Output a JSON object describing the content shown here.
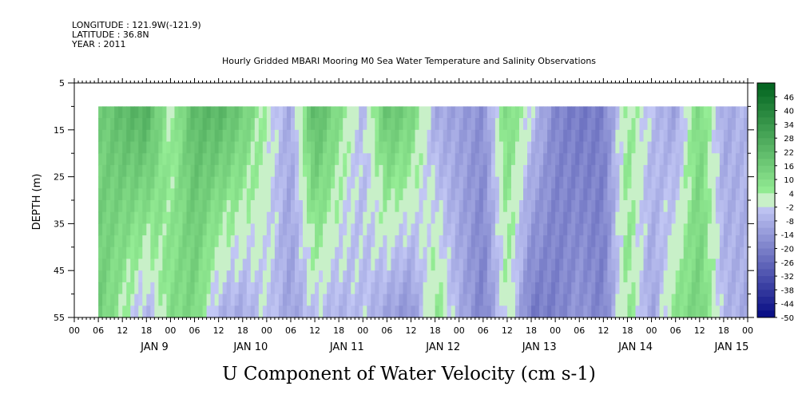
{
  "header": {
    "longitude": "LONGITUDE : 121.9W(-121.9)",
    "latitude": "LATITUDE : 36.8N",
    "year": "YEAR : 2011"
  },
  "chart_data": {
    "type": "heatmap",
    "title": "Hourly Gridded MBARI Mooring M0 Sea Water Temperature and Salinity Observations",
    "caption": "U Component of Water Velocity (cm s-1)",
    "ylabel": "DEPTH (m)",
    "y_ticks": [
      5,
      15,
      25,
      35,
      45,
      55
    ],
    "y_range": [
      5,
      55
    ],
    "y_inverted": true,
    "data_depth_range": [
      10,
      55
    ],
    "hour_ticks": [
      "00",
      "06",
      "12",
      "18",
      "00",
      "06",
      "12",
      "18",
      "00",
      "06",
      "12",
      "18",
      "00",
      "06",
      "12",
      "18",
      "00",
      "06",
      "12",
      "18",
      "00",
      "06",
      "12",
      "18",
      "00",
      "06",
      "12",
      "18",
      "00"
    ],
    "day_labels": [
      "JAN  9",
      "JAN 10",
      "JAN 11",
      "JAN 12",
      "JAN 13",
      "JAN 14",
      "JAN 15"
    ],
    "x_range_hours": [
      0,
      168
    ],
    "data_start_hour": 6,
    "colorbar": {
      "labels": [
        "46",
        "40",
        "34",
        "28",
        "22",
        "16",
        "10",
        "4",
        "-2",
        "-8",
        "-14",
        "-20",
        "-26",
        "-32",
        "-38",
        "-44",
        "-50"
      ],
      "range": [
        -50,
        52
      ]
    },
    "u_profile": {
      "hours": [
        6,
        12,
        18,
        24,
        30,
        36,
        42,
        48,
        54,
        60,
        66,
        72,
        78,
        84,
        90,
        96,
        102,
        108,
        114,
        120,
        126,
        132,
        138,
        144,
        150,
        156,
        162,
        168
      ],
      "surface": [
        14,
        22,
        26,
        2,
        22,
        24,
        16,
        2,
        -10,
        24,
        10,
        -6,
        20,
        14,
        -10,
        -12,
        -16,
        12,
        -2,
        -18,
        -22,
        -20,
        6,
        -4,
        -12,
        12,
        -10,
        -6
      ],
      "bottom": [
        16,
        4,
        -8,
        10,
        12,
        -8,
        -10,
        -2,
        -12,
        -4,
        -8,
        -4,
        -12,
        -16,
        8,
        -8,
        -20,
        2,
        -22,
        -20,
        -14,
        -20,
        8,
        -12,
        8,
        14,
        -6,
        -10
      ]
    }
  }
}
